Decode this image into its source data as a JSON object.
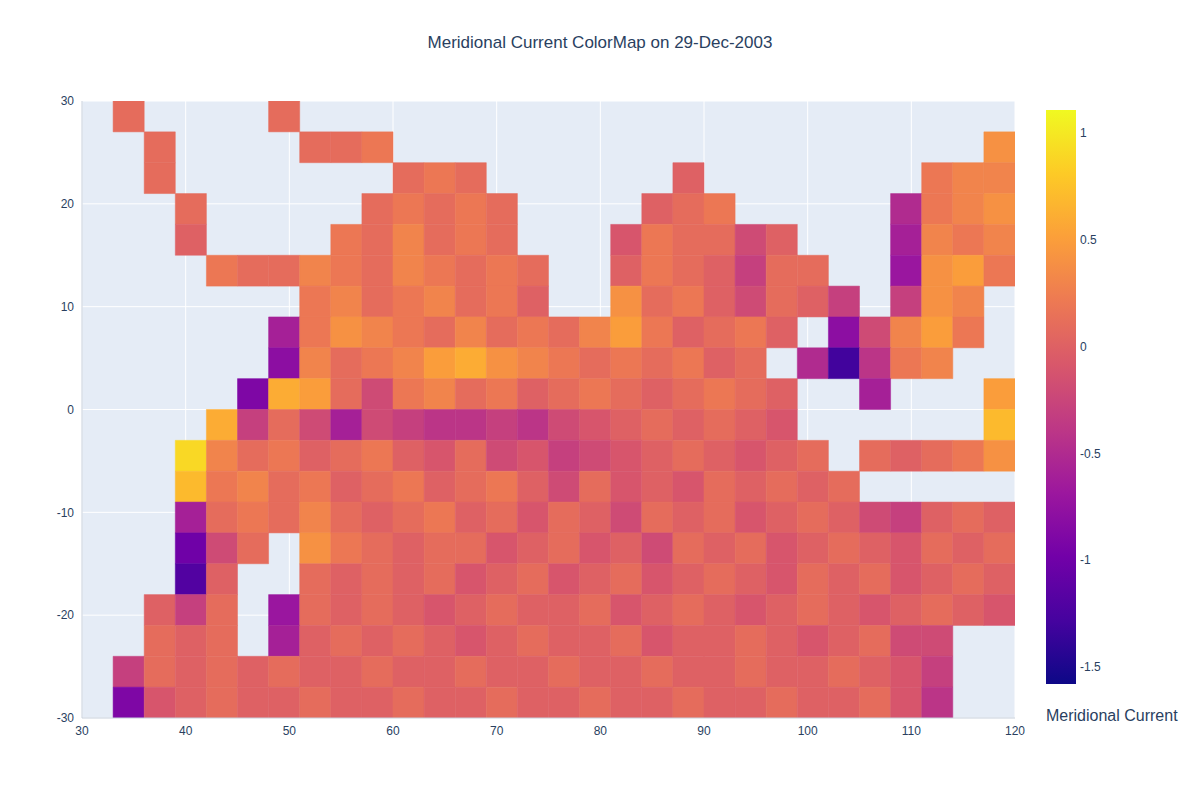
{
  "chart_data": {
    "type": "heatmap",
    "title": "Meridional Current ColorMap on 29-Dec-2003",
    "x": [
      31.5,
      34.5,
      37.5,
      40.5,
      43.5,
      46.5,
      49.5,
      52.5,
      55.5,
      58.5,
      61.5,
      64.5,
      67.5,
      70.5,
      73.5,
      76.5,
      79.5,
      82.5,
      85.5,
      88.5,
      91.5,
      94.5,
      97.5,
      100.5,
      103.5,
      106.5,
      109.5,
      112.5,
      115.5,
      118.5
    ],
    "y": [
      28.5,
      25.5,
      22.5,
      19.5,
      16.5,
      13.5,
      10.5,
      7.5,
      4.5,
      1.5,
      -1.5,
      -4.5,
      -7.5,
      -10.5,
      -13.5,
      -16.5,
      -19.5,
      -22.5,
      -25.5,
      -28.5
    ],
    "z": [
      [
        null,
        0.1,
        null,
        null,
        null,
        null,
        0.1,
        null,
        null,
        null,
        null,
        null,
        null,
        null,
        null,
        null,
        null,
        null,
        null,
        null,
        null,
        null,
        null,
        null,
        null,
        null,
        null,
        null,
        null,
        null
      ],
      [
        null,
        null,
        0.1,
        null,
        null,
        null,
        null,
        0.1,
        0.1,
        0.2,
        null,
        null,
        null,
        null,
        null,
        null,
        null,
        null,
        null,
        null,
        null,
        null,
        null,
        null,
        null,
        null,
        null,
        null,
        null,
        0.4
      ],
      [
        null,
        null,
        0.1,
        null,
        null,
        null,
        null,
        null,
        null,
        null,
        0.1,
        0.2,
        0.1,
        null,
        null,
        null,
        null,
        null,
        null,
        0,
        null,
        null,
        null,
        null,
        null,
        null,
        null,
        0.2,
        0.3,
        0.3
      ],
      [
        null,
        null,
        null,
        0.1,
        null,
        null,
        null,
        null,
        null,
        0.1,
        0.2,
        0.1,
        0.2,
        0.1,
        null,
        null,
        null,
        null,
        0,
        0.1,
        0.2,
        null,
        null,
        null,
        null,
        null,
        -0.5,
        0.2,
        0.3,
        0.4
      ],
      [
        null,
        null,
        null,
        0,
        null,
        null,
        null,
        null,
        0.2,
        0.1,
        0.3,
        0.1,
        0.2,
        0.1,
        null,
        null,
        null,
        -0.1,
        0.2,
        0.1,
        0.1,
        -0.2,
        0,
        null,
        null,
        null,
        -0.6,
        0.3,
        0.2,
        0.3
      ],
      [
        null,
        null,
        null,
        null,
        0.2,
        0.1,
        0.1,
        0.3,
        0.2,
        0.1,
        0.3,
        0.2,
        0.1,
        0.2,
        0.1,
        null,
        null,
        0,
        0.2,
        0.1,
        0,
        -0.3,
        0.1,
        0.1,
        null,
        null,
        -0.7,
        0.4,
        0.5,
        0.2
      ],
      [
        null,
        null,
        null,
        null,
        null,
        null,
        null,
        0.2,
        0.3,
        0.1,
        0.2,
        0.3,
        0.1,
        0.2,
        0,
        null,
        null,
        0.4,
        0.1,
        0.2,
        0,
        -0.2,
        0.1,
        0,
        -0.3,
        null,
        -0.3,
        0.4,
        0.3,
        null
      ],
      [
        null,
        null,
        null,
        null,
        null,
        null,
        -0.6,
        0.2,
        0.4,
        0.3,
        0.2,
        0.1,
        0.3,
        0.1,
        0.2,
        0.1,
        0.3,
        0.5,
        0.2,
        0,
        0.1,
        0.2,
        0,
        null,
        -0.8,
        -0.2,
        0.3,
        0.5,
        0.2,
        null
      ],
      [
        null,
        null,
        null,
        null,
        null,
        null,
        -0.8,
        0.3,
        0.1,
        0.2,
        0.3,
        0.5,
        0.6,
        0.4,
        0.3,
        0.2,
        0.1,
        0.2,
        0.1,
        0.2,
        0,
        0.1,
        null,
        -0.5,
        -1.3,
        -0.4,
        0.2,
        0.3,
        null,
        null
      ],
      [
        null,
        null,
        null,
        null,
        null,
        -0.9,
        0.6,
        0.5,
        0.1,
        -0.2,
        0.2,
        0.3,
        0.1,
        0.2,
        0,
        0.1,
        0.2,
        0.1,
        0,
        0.1,
        0.2,
        0.1,
        0,
        null,
        null,
        -0.6,
        null,
        null,
        null,
        0.5
      ],
      [
        null,
        null,
        null,
        null,
        0.6,
        -0.3,
        0.1,
        -0.2,
        -0.6,
        -0.2,
        -0.3,
        -0.4,
        -0.4,
        -0.3,
        -0.4,
        -0.2,
        -0.1,
        0,
        0.1,
        0,
        0.1,
        0,
        -0.1,
        null,
        null,
        null,
        null,
        null,
        null,
        0.7
      ],
      [
        null,
        null,
        null,
        0.9,
        0.3,
        0.1,
        0.2,
        0,
        0.1,
        0.2,
        0,
        -0.1,
        0.1,
        -0.2,
        -0.1,
        -0.3,
        -0.2,
        -0.1,
        0,
        0.1,
        0,
        -0.1,
        0,
        0.1,
        null,
        0.1,
        0,
        0.1,
        0.2,
        0.4
      ],
      [
        null,
        null,
        null,
        0.7,
        0.2,
        0.3,
        0.1,
        0.2,
        0,
        0.1,
        0.2,
        0,
        0.1,
        0.2,
        0,
        -0.2,
        0.1,
        -0.1,
        0,
        -0.1,
        0.1,
        0,
        0.1,
        0,
        0.1,
        null,
        null,
        null,
        null,
        null
      ],
      [
        null,
        null,
        null,
        -0.6,
        0.1,
        0.2,
        0.1,
        0.3,
        0.1,
        0,
        0.1,
        0.2,
        0,
        0.1,
        -0.1,
        0.1,
        0,
        -0.2,
        0.1,
        0,
        0.1,
        -0.1,
        0,
        0.1,
        0,
        -0.2,
        -0.3,
        0,
        0.1,
        0
      ],
      [
        null,
        null,
        null,
        -1.0,
        -0.2,
        0.1,
        null,
        0.4,
        0.2,
        0.1,
        0,
        0.1,
        0.1,
        -0.1,
        0,
        0.1,
        -0.1,
        0,
        -0.2,
        0.1,
        0,
        0.1,
        -0.1,
        0,
        0.1,
        0,
        -0.1,
        0.1,
        0,
        0.1
      ],
      [
        null,
        null,
        null,
        -1.2,
        0,
        null,
        null,
        0.1,
        0,
        0.1,
        0,
        0.1,
        -0.1,
        0,
        0.1,
        -0.1,
        0,
        0.1,
        -0.1,
        0,
        0.1,
        0,
        -0.1,
        0.1,
        0,
        0.1,
        -0.1,
        0,
        0.1,
        0
      ],
      [
        null,
        null,
        0,
        -0.3,
        0.1,
        null,
        -0.7,
        0.1,
        0,
        0.1,
        0,
        -0.1,
        0,
        0.1,
        0,
        0,
        0.1,
        -0.1,
        0,
        0.1,
        0,
        -0.1,
        0,
        0.1,
        0,
        -0.1,
        0,
        0.1,
        0,
        -0.1
      ],
      [
        null,
        null,
        0.1,
        0,
        0.1,
        null,
        -0.6,
        0,
        0.1,
        0,
        0.1,
        0,
        -0.1,
        0,
        0.1,
        0,
        0,
        0.1,
        -0.1,
        0,
        0,
        0.1,
        0,
        -0.1,
        0,
        0.1,
        -0.2,
        -0.2,
        null,
        null
      ],
      [
        null,
        -0.3,
        0.1,
        0,
        0.1,
        0,
        0.1,
        0,
        0,
        0.1,
        0,
        0,
        0.1,
        0,
        0,
        0.1,
        0,
        0,
        0.1,
        0,
        0,
        0.1,
        0,
        0,
        0.1,
        0,
        -0.1,
        -0.3,
        null,
        null
      ],
      [
        null,
        -0.9,
        -0.1,
        0,
        0.1,
        0,
        0,
        0.1,
        0,
        0,
        0.1,
        0,
        0,
        0.1,
        0,
        0,
        0.1,
        0,
        0,
        0.1,
        0,
        0,
        0.1,
        0,
        0,
        0.1,
        -0.1,
        -0.4,
        null,
        null
      ]
    ],
    "xlim": [
      30,
      120
    ],
    "ylim": [
      -30,
      30
    ],
    "xticks": [
      30,
      40,
      50,
      60,
      70,
      80,
      90,
      100,
      110,
      120
    ],
    "yticks": [
      -30,
      -20,
      -10,
      0,
      10,
      20,
      30
    ],
    "grid": true,
    "colorbar": {
      "title": "Meridional Current",
      "range": [
        -1.58,
        1.11
      ],
      "ticks": [
        -1.5,
        -1,
        -0.5,
        0,
        0.5,
        1
      ]
    }
  }
}
